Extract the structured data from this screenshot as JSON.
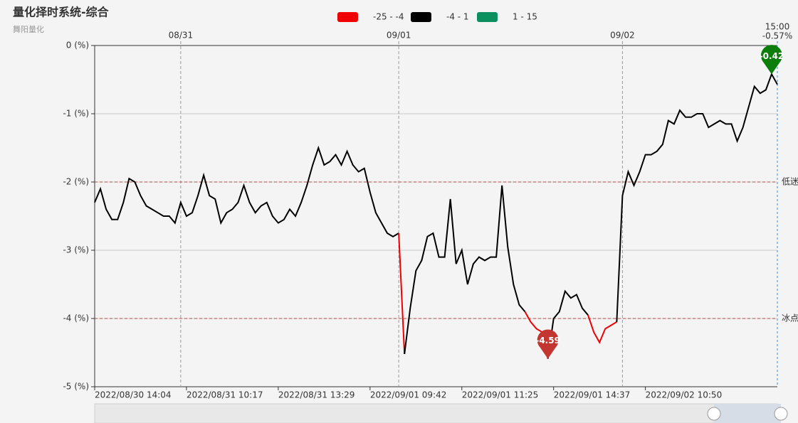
{
  "chart_data": {
    "type": "line",
    "title": "量化择时系统-综合",
    "subtitle": "舞阳量化",
    "categories": [
      "2022/08/30 14:04",
      null,
      null,
      null,
      null,
      null,
      null,
      null,
      null,
      null,
      null,
      null,
      null,
      null,
      null,
      null,
      "2022/08/31 10:17",
      null,
      null,
      null,
      null,
      null,
      null,
      null,
      null,
      null,
      null,
      null,
      null,
      null,
      null,
      null,
      "2022/08/31 13:29",
      null,
      null,
      null,
      null,
      null,
      null,
      null,
      null,
      null,
      null,
      null,
      null,
      null,
      null,
      null,
      "2022/09/01 09:42",
      null,
      null,
      null,
      null,
      null,
      null,
      null,
      null,
      null,
      null,
      null,
      null,
      null,
      null,
      null,
      "2022/09/01 11:25",
      null,
      null,
      null,
      null,
      null,
      null,
      null,
      null,
      null,
      null,
      null,
      null,
      null,
      null,
      null,
      "2022/09/01 14:37",
      null,
      null,
      null,
      null,
      null,
      null,
      null,
      null,
      null,
      null,
      null,
      null,
      null,
      null,
      null,
      "2022/09/02 10:50",
      null,
      null,
      null,
      null,
      null,
      null,
      null,
      null,
      null,
      null,
      null,
      null,
      null,
      null,
      null,
      null,
      null,
      null,
      null,
      null,
      null,
      null,
      null
    ],
    "values": [
      -2.3,
      -2.1,
      -2.4,
      -2.55,
      -2.55,
      -2.3,
      -1.95,
      -2.0,
      -2.2,
      -2.35,
      -2.4,
      -2.45,
      -2.5,
      -2.5,
      -2.6,
      -2.3,
      -2.5,
      -2.45,
      -2.2,
      -1.9,
      -2.2,
      -2.25,
      -2.6,
      -2.45,
      -2.4,
      -2.3,
      -2.05,
      -2.3,
      -2.45,
      -2.35,
      -2.3,
      -2.5,
      -2.6,
      -2.55,
      -2.4,
      -2.5,
      -2.3,
      -2.05,
      -1.75,
      -1.5,
      -1.75,
      -1.7,
      -1.6,
      -1.75,
      -1.55,
      -1.75,
      -1.85,
      -1.8,
      -2.15,
      -2.45,
      -2.6,
      -2.75,
      -2.8,
      -2.75,
      -4.52,
      -3.85,
      -3.3,
      -3.15,
      -2.8,
      -2.75,
      -3.1,
      -3.1,
      -2.25,
      -3.2,
      -3.0,
      -3.5,
      -3.2,
      -3.1,
      -3.15,
      -3.1,
      -3.1,
      -2.05,
      -2.95,
      -3.5,
      -3.8,
      -3.9,
      -4.05,
      -4.15,
      -4.2,
      -4.59,
      -4.0,
      -3.9,
      -3.6,
      -3.7,
      -3.65,
      -3.85,
      -3.95,
      -4.2,
      -4.35,
      -4.15,
      -4.1,
      -4.05,
      -2.2,
      -1.85,
      -2.05,
      -1.85,
      -1.6,
      -1.6,
      -1.55,
      -1.45,
      -1.1,
      -1.15,
      -0.95,
      -1.05,
      -1.05,
      -1.0,
      -1.0,
      -1.2,
      -1.15,
      -1.1,
      -1.15,
      -1.15,
      -1.4,
      -1.2,
      -0.9,
      -0.6,
      -0.7,
      -0.65,
      -0.42,
      -0.57
    ],
    "ylim": [
      -5,
      0
    ],
    "yticks": [
      {
        "value": 0,
        "label": "0 (%)"
      },
      {
        "value": -1,
        "label": "-1 (%)"
      },
      {
        "value": -2,
        "label": "-2 (%)"
      },
      {
        "value": -3,
        "label": "-3 (%)"
      },
      {
        "value": -4,
        "label": "-4 (%)"
      },
      {
        "value": -5,
        "label": "-5 (%)"
      }
    ],
    "grid": true,
    "pieces": [
      {
        "min": -25,
        "max": -4,
        "label": "-25 - -4",
        "color": "#f00000"
      },
      {
        "min": -4,
        "max": 1,
        "label": "-4 - 1",
        "color": "#000000"
      },
      {
        "min": 1,
        "max": 15,
        "label": "1 - 15",
        "color": "#0a8f5e"
      }
    ],
    "day_marks": [
      {
        "index": 15,
        "label": "08/31"
      },
      {
        "index": 53,
        "label": "09/01"
      },
      {
        "index": 92,
        "label": "09/02"
      }
    ],
    "last_point": {
      "time": "15:00",
      "label": "-0.57%"
    },
    "mark_lines": [
      {
        "name": "低迷",
        "value": -2
      },
      {
        "name": "冰点",
        "value": -4
      }
    ],
    "mark_points": [
      {
        "index": 118,
        "value": -0.42,
        "color": "#0a7d0a"
      },
      {
        "index": 79,
        "value": -4.59,
        "color": "#c23531"
      }
    ]
  }
}
